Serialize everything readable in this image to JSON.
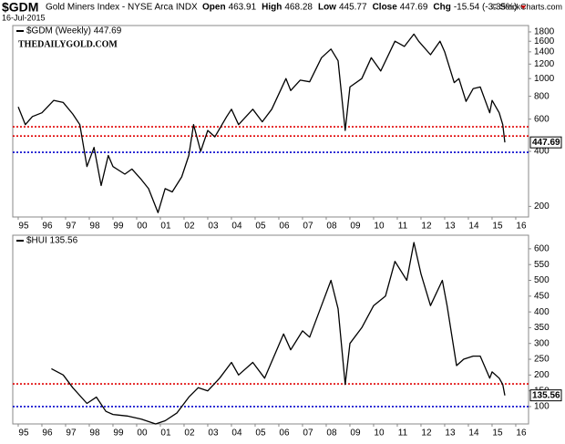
{
  "header": {
    "symbol": "$GDM",
    "name": "Gold Miners Index - NYSE Arca INDX",
    "date": "16-Jul-2015",
    "source": "© StockCharts.com",
    "quote": [
      {
        "label": "Open",
        "value": "463.91"
      },
      {
        "label": "High",
        "value": "468.28"
      },
      {
        "label": "Low",
        "value": "445.77"
      },
      {
        "label": "Close",
        "value": "447.69"
      },
      {
        "label": "Chg",
        "value": "-15.54 (-3.35%)"
      }
    ]
  },
  "chart_data": [
    {
      "type": "line",
      "yscale": "log",
      "grid": false,
      "annotation": "THEDAILYGOLD.COM",
      "last_value": 447.69,
      "x": [
        1995.0,
        1995.3,
        1995.6,
        1996.0,
        1996.5,
        1996.9,
        1997.3,
        1997.6,
        1997.9,
        1998.2,
        1998.5,
        1998.8,
        1999.0,
        1999.5,
        1999.8,
        2000.2,
        2000.5,
        2000.9,
        2001.2,
        2001.5,
        2001.9,
        2002.2,
        2002.4,
        2002.7,
        2003.0,
        2003.3,
        2003.8,
        2004.0,
        2004.3,
        2004.9,
        2005.3,
        2005.7,
        2006.3,
        2006.5,
        2006.9,
        2007.3,
        2007.8,
        2008.2,
        2008.5,
        2008.8,
        2009.0,
        2009.5,
        2009.9,
        2010.3,
        2010.9,
        2011.3,
        2011.7,
        2011.9,
        2012.4,
        2012.8,
        2013.0,
        2013.4,
        2013.6,
        2013.9,
        2014.2,
        2014.5,
        2014.9,
        2015.0,
        2015.3,
        2015.45,
        2015.54
      ],
      "series": [
        {
          "name": "$GDM (Weekly) 447.69",
          "color": "#000000",
          "values": [
            700,
            560,
            620,
            650,
            760,
            740,
            640,
            560,
            330,
            420,
            260,
            380,
            330,
            300,
            320,
            280,
            250,
            185,
            250,
            240,
            290,
            380,
            560,
            400,
            520,
            480,
            620,
            680,
            560,
            680,
            580,
            680,
            1000,
            860,
            980,
            960,
            1300,
            1450,
            1250,
            520,
            900,
            1000,
            1300,
            1100,
            1600,
            1500,
            1750,
            1600,
            1350,
            1600,
            1400,
            950,
            1000,
            750,
            880,
            900,
            650,
            760,
            650,
            560,
            447.69
          ]
        }
      ],
      "hlines": [
        {
          "value": 545,
          "color": "#e00000"
        },
        {
          "value": 485,
          "color": "#e00000"
        },
        {
          "value": 395,
          "color": "#0000cc"
        }
      ],
      "ylim": [
        175,
        1950
      ],
      "yticks": [
        200,
        400,
        600,
        800,
        1000,
        1200,
        1400,
        1600,
        1800
      ],
      "xlim": [
        1994.77,
        2016.54
      ],
      "xticks": [
        {
          "value": 1995,
          "label": "95"
        },
        {
          "value": 1996,
          "label": "96"
        },
        {
          "value": 1997,
          "label": "97"
        },
        {
          "value": 1998,
          "label": "98"
        },
        {
          "value": 1999,
          "label": "99"
        },
        {
          "value": 2000,
          "label": "00"
        },
        {
          "value": 2001,
          "label": "01"
        },
        {
          "value": 2002,
          "label": "02"
        },
        {
          "value": 2003,
          "label": "03"
        },
        {
          "value": 2004,
          "label": "04"
        },
        {
          "value": 2005,
          "label": "05"
        },
        {
          "value": 2006,
          "label": "06"
        },
        {
          "value": 2007,
          "label": "07"
        },
        {
          "value": 2008,
          "label": "08"
        },
        {
          "value": 2009,
          "label": "09"
        },
        {
          "value": 2010,
          "label": "10"
        },
        {
          "value": 2011,
          "label": "11"
        },
        {
          "value": 2012,
          "label": "12"
        },
        {
          "value": 2013,
          "label": "13"
        },
        {
          "value": 2014,
          "label": "14"
        },
        {
          "value": 2015,
          "label": "15"
        },
        {
          "value": 2016,
          "label": "16"
        }
      ]
    },
    {
      "type": "line",
      "yscale": "linear",
      "grid": false,
      "last_value": 135.56,
      "x": [
        1996.4,
        1996.9,
        1997.3,
        1997.9,
        1998.3,
        1998.7,
        1999.0,
        1999.6,
        2000.2,
        2000.8,
        2001.2,
        2001.7,
        2002.2,
        2002.6,
        2003.0,
        2003.5,
        2004.0,
        2004.3,
        2004.9,
        2005.4,
        2006.2,
        2006.5,
        2007.0,
        2007.3,
        2007.8,
        2008.2,
        2008.5,
        2008.8,
        2009.0,
        2009.5,
        2010.0,
        2010.5,
        2010.9,
        2011.4,
        2011.7,
        2012.0,
        2012.4,
        2012.9,
        2013.1,
        2013.5,
        2013.8,
        2014.2,
        2014.5,
        2014.9,
        2015.0,
        2015.3,
        2015.45,
        2015.54
      ],
      "series": [
        {
          "name": "$HUI 135.56",
          "color": "#000000",
          "values": [
            220,
            200,
            160,
            110,
            130,
            85,
            75,
            70,
            60,
            45,
            55,
            80,
            130,
            160,
            150,
            190,
            240,
            200,
            240,
            190,
            330,
            280,
            340,
            320,
            420,
            500,
            410,
            170,
            300,
            350,
            420,
            450,
            560,
            500,
            620,
            520,
            420,
            500,
            420,
            230,
            250,
            260,
            260,
            190,
            210,
            190,
            170,
            135.56
          ]
        }
      ],
      "hlines": [
        {
          "value": 172,
          "color": "#e00000"
        },
        {
          "value": 100,
          "color": "#0000cc"
        }
      ],
      "ylim": [
        45,
        643
      ],
      "yticks": [
        100,
        150,
        200,
        250,
        300,
        350,
        400,
        450,
        500,
        550,
        600
      ],
      "xlim": [
        1994.77,
        2016.54
      ],
      "xticks": [
        {
          "value": 1995,
          "label": "95"
        },
        {
          "value": 1996,
          "label": "96"
        },
        {
          "value": 1997,
          "label": "97"
        },
        {
          "value": 1998,
          "label": "98"
        },
        {
          "value": 1999,
          "label": "99"
        },
        {
          "value": 2000,
          "label": "00"
        },
        {
          "value": 2001,
          "label": "01"
        },
        {
          "value": 2002,
          "label": "02"
        },
        {
          "value": 2003,
          "label": "03"
        },
        {
          "value": 2004,
          "label": "04"
        },
        {
          "value": 2005,
          "label": "05"
        },
        {
          "value": 2006,
          "label": "06"
        },
        {
          "value": 2007,
          "label": "07"
        },
        {
          "value": 2008,
          "label": "08"
        },
        {
          "value": 2009,
          "label": "09"
        },
        {
          "value": 2010,
          "label": "10"
        },
        {
          "value": 2011,
          "label": "11"
        },
        {
          "value": 2012,
          "label": "12"
        },
        {
          "value": 2013,
          "label": "13"
        },
        {
          "value": 2014,
          "label": "14"
        },
        {
          "value": 2015,
          "label": "15"
        },
        {
          "value": 2016,
          "label": "16"
        }
      ]
    }
  ]
}
